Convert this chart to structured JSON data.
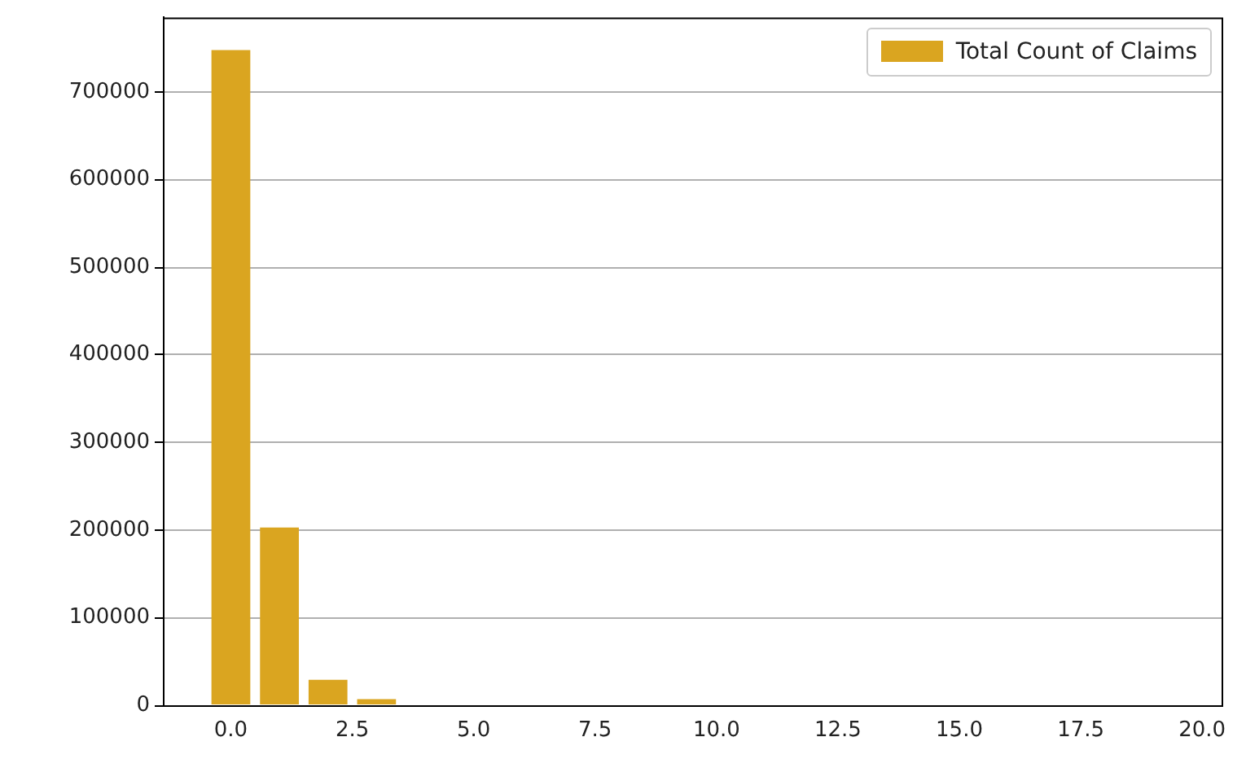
{
  "chart_data": {
    "type": "bar",
    "x": [
      0,
      1,
      2,
      3,
      4,
      5,
      6,
      7,
      8,
      9,
      10,
      11,
      12,
      13,
      14,
      15,
      16,
      17,
      18,
      19
    ],
    "series": [
      {
        "name": "Total Count of Claims",
        "color": "#daa520",
        "values": [
          748000,
          203000,
          29000,
          7000,
          0,
          0,
          0,
          0,
          0,
          0,
          0,
          0,
          0,
          0,
          0,
          0,
          0,
          0,
          0,
          0
        ]
      }
    ],
    "xlim": [
      -1.4,
      20.4
    ],
    "ylim": [
      0,
      785000
    ],
    "xticks": [
      {
        "value": 0,
        "label": "0.0"
      },
      {
        "value": 2.5,
        "label": "2.5"
      },
      {
        "value": 5,
        "label": "5.0"
      },
      {
        "value": 7.5,
        "label": "7.5"
      },
      {
        "value": 10,
        "label": "10.0"
      },
      {
        "value": 12.5,
        "label": "12.5"
      },
      {
        "value": 15,
        "label": "15.0"
      },
      {
        "value": 17.5,
        "label": "17.5"
      },
      {
        "value": 20,
        "label": "20.0"
      }
    ],
    "yticks": [
      0,
      100000,
      200000,
      300000,
      400000,
      500000,
      600000,
      700000
    ],
    "grid": "y",
    "legend": "top right"
  }
}
